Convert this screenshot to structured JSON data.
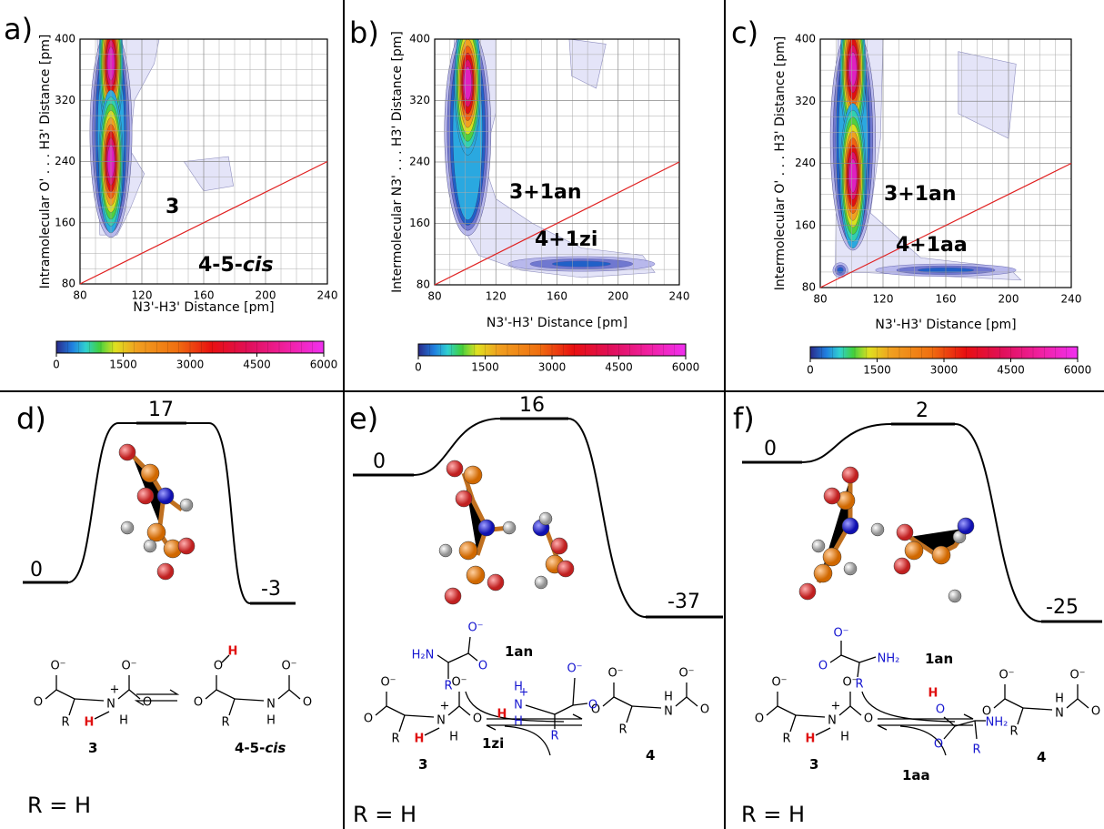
{
  "panels": [
    {
      "label": "a)",
      "xlabel": "N3'-H3' Distance [pm]",
      "ylabel": "Intramolecular O' . . . H3' Distance [pm]",
      "xlim": [
        80,
        240
      ],
      "ylim": [
        80,
        400
      ],
      "xticks": [
        80,
        120,
        160,
        200,
        240
      ],
      "yticks": [
        80,
        160,
        240,
        320,
        400
      ],
      "colorbar": {
        "lim": [
          0,
          6000
        ],
        "ticks": [
          0,
          1500,
          3000,
          4500,
          6000
        ]
      },
      "annotations": [
        "3",
        "4-5-",
        "cis"
      ]
    },
    {
      "label": "b)",
      "xlabel": "N3'-H3' Distance [pm]",
      "ylabel": "Intermolecular N3' . . . H3' Distance [pm]",
      "xlim": [
        80,
        240
      ],
      "ylim": [
        80,
        400
      ],
      "xticks": [
        80,
        120,
        160,
        200,
        240
      ],
      "yticks": [
        80,
        160,
        240,
        320,
        400
      ],
      "colorbar": {
        "lim": [
          0,
          6000
        ],
        "ticks": [
          0,
          1500,
          3000,
          4500,
          6000
        ]
      },
      "annotations": [
        "3+1an",
        "4+1zi"
      ]
    },
    {
      "label": "c)",
      "xlabel": "N3'-H3' Distance [pm]",
      "ylabel": "Intermolecular O' . . . H3' Distance [pm]",
      "xlim": [
        80,
        240
      ],
      "ylim": [
        80,
        400
      ],
      "xticks": [
        80,
        120,
        160,
        200,
        240
      ],
      "yticks": [
        80,
        160,
        240,
        320,
        400
      ],
      "colorbar": {
        "lim": [
          0,
          6000
        ],
        "ticks": [
          0,
          1500,
          3000,
          4500,
          6000
        ]
      },
      "annotations": [
        "3+1an",
        "4+1aa"
      ]
    }
  ],
  "profiles": [
    {
      "label": "d)",
      "energies": {
        "start": 0,
        "ts": 17,
        "end": -3
      },
      "footer": "R = H",
      "molecules": [
        {
          "name": "3",
          "atoms": [
            "O⁻",
            "O",
            "R",
            "N",
            "+",
            "H",
            "H",
            "O⁻",
            "O"
          ]
        },
        {
          "name": "4-5-",
          "name_suffix": "cis",
          "atoms": [
            "O",
            "H",
            "O",
            "R",
            "N",
            "H",
            "O⁻",
            "O"
          ]
        }
      ]
    },
    {
      "label": "e)",
      "energies": {
        "start": 0,
        "ts": 16,
        "end": -37
      },
      "footer": "R = H",
      "molecules": [
        {
          "name": "3",
          "atoms": [
            "O⁻",
            "O",
            "R",
            "N",
            "+",
            "H",
            "H",
            "O⁻",
            "O"
          ]
        },
        {
          "name": "1an",
          "atoms": [
            "H₂N",
            "O⁻",
            "O",
            "R"
          ]
        },
        {
          "name": "4",
          "atoms": [
            "O⁻",
            "O",
            "R",
            "N",
            "H",
            "O⁻",
            "O"
          ]
        },
        {
          "name": "1zi",
          "atoms": [
            "H",
            "N",
            "+",
            "H",
            "H",
            "O⁻",
            "O",
            "R"
          ]
        }
      ]
    },
    {
      "label": "f)",
      "energies": {
        "start": 0,
        "ts": 2,
        "end": -25
      },
      "footer": "R = H",
      "molecules": [
        {
          "name": "3",
          "atoms": [
            "O⁻",
            "O",
            "R",
            "N",
            "+",
            "H",
            "H",
            "O⁻",
            "O"
          ]
        },
        {
          "name": "1an",
          "atoms": [
            "O⁻",
            "O",
            "NH₂",
            "R"
          ]
        },
        {
          "name": "4",
          "atoms": [
            "O⁻",
            "O",
            "R",
            "N",
            "H",
            "O⁻",
            "O"
          ]
        },
        {
          "name": "1aa",
          "atoms": [
            "H",
            "O",
            "O",
            "NH₂",
            "R"
          ]
        }
      ]
    }
  ]
}
